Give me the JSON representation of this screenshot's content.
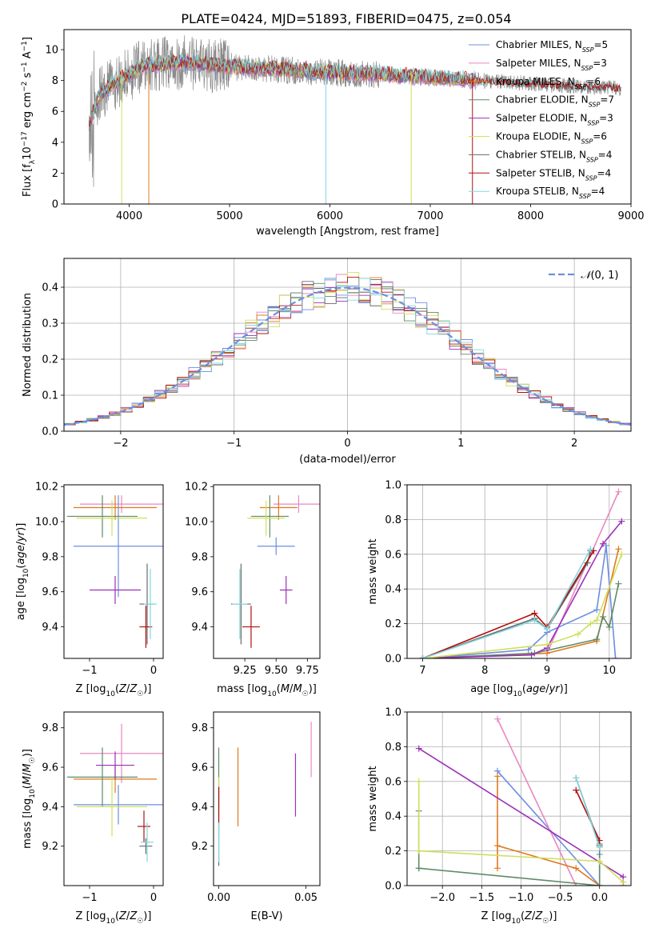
{
  "figure": {
    "title": "PLATE=0424, MJD=51893, FIBERID=0475, z=0.054"
  },
  "series_colors": [
    "#6d8ee0",
    "#e987c0",
    "#df7a1e",
    "#5e8b66",
    "#9b30b8",
    "#cfe05a",
    "#6a6a6a",
    "#b21010",
    "#80d8e0"
  ],
  "chart_data": [
    {
      "id": "spectrum",
      "type": "line",
      "xlabel": "wavelength [Angstrom, rest frame]",
      "ylabel": "Flux [f_λ 10^-17 erg cm^-2 s^-1 A^-1]",
      "xlim": [
        3350,
        9000
      ],
      "ylim": [
        0,
        11.3
      ],
      "xticks": [
        4000,
        5000,
        6000,
        7000,
        8000,
        9000
      ],
      "yticks": [
        0,
        2,
        4,
        6,
        8,
        10
      ],
      "grid": false,
      "legend_position": "top-right",
      "legend": [
        {
          "base": "Chabrier MILES, N",
          "sub": "SSP",
          "tail": "=5",
          "color": "#6d8ee0"
        },
        {
          "base": "Salpeter MILES, N",
          "sub": "SSP",
          "tail": "=3",
          "color": "#e987c0"
        },
        {
          "base": "Kroupa MILES, N",
          "sub": "SSP",
          "tail": "=6",
          "color": "#df7a1e"
        },
        {
          "base": "Chabrier ELODIE, N",
          "sub": "SSP",
          "tail": "=7",
          "color": "#5e8b66"
        },
        {
          "base": "Salpeter ELODIE, N",
          "sub": "SSP",
          "tail": "=3",
          "color": "#9b30b8"
        },
        {
          "base": "Kroupa ELODIE, N",
          "sub": "SSP",
          "tail": "=6",
          "color": "#cfe05a"
        },
        {
          "base": "Chabrier STELIB, N",
          "sub": "SSP",
          "tail": "=4",
          "color": "#6a6a6a"
        },
        {
          "base": "Salpeter STELIB, N",
          "sub": "SSP",
          "tail": "=4",
          "color": "#b21010"
        },
        {
          "base": "Kroupa STELIB, N",
          "sub": "SSP",
          "tail": "=4",
          "color": "#80d8e0"
        }
      ],
      "continuum": [
        [
          3600,
          5.2
        ],
        [
          3700,
          7.0
        ],
        [
          3800,
          7.6
        ],
        [
          3900,
          8.0
        ],
        [
          4000,
          8.4
        ],
        [
          4100,
          8.8
        ],
        [
          4200,
          9.0
        ],
        [
          4400,
          9.1
        ],
        [
          4600,
          9.2
        ],
        [
          4800,
          9.0
        ],
        [
          5000,
          8.9
        ],
        [
          5200,
          8.8
        ],
        [
          5500,
          8.7
        ],
        [
          6000,
          8.5
        ],
        [
          6500,
          8.4
        ],
        [
          7000,
          8.2
        ],
        [
          7500,
          8.0
        ],
        [
          8000,
          7.8
        ],
        [
          8500,
          7.6
        ],
        [
          8900,
          7.5
        ]
      ],
      "spikes": [
        {
          "x": 4195,
          "series": "Kroupa MILES"
        },
        {
          "x": 5960,
          "series": "Kroupa STELIB"
        },
        {
          "x": 6810,
          "series": "Kroupa ELODIE"
        },
        {
          "x": 7420,
          "series": "Salpeter STELIB"
        },
        {
          "x": 3925,
          "series": "Kroupa ELODIE"
        }
      ]
    },
    {
      "id": "residuals",
      "type": "histogram",
      "xlabel": "(data-model)/error",
      "ylabel": "Normed distribution",
      "xlim": [
        -2.5,
        2.5
      ],
      "ylim": [
        0,
        0.48
      ],
      "xticks": [
        -2,
        -1,
        0,
        1,
        2
      ],
      "yticks": [
        0.0,
        0.1,
        0.2,
        0.3,
        0.4
      ],
      "grid": true,
      "legend_position": "top-right",
      "legend": [
        {
          "label": "N(0,1)",
          "color": "#6d8ee0",
          "style": "dashed"
        }
      ],
      "bins": 50
    },
    {
      "id": "age-vs-Z",
      "type": "errorbar",
      "xlabel": "Z [log10(Z/Zsun)]",
      "ylabel": "age [log10(age/yr)]",
      "xlim": [
        -1.4,
        0.15
      ],
      "ylim": [
        9.22,
        10.21
      ],
      "xticks": [
        -1,
        0
      ],
      "yticks": [
        9.4,
        9.6,
        9.8,
        10.0,
        10.2
      ],
      "points": [
        {
          "series": "Chabrier MILES",
          "x": -0.55,
          "xerr": 0.7,
          "y": 9.86,
          "yerr": 0.29
        },
        {
          "series": "Salpeter MILES",
          "x": -0.5,
          "xerr": 0.65,
          "y": 10.1,
          "yerr": 0.05
        },
        {
          "series": "Kroupa MILES",
          "x": -0.6,
          "xerr": 0.65,
          "y": 10.08,
          "yerr": 0.07
        },
        {
          "series": "Chabrier ELODIE",
          "x": -0.8,
          "xerr": 0.55,
          "y": 10.03,
          "yerr": 0.12
        },
        {
          "series": "Salpeter ELODIE",
          "x": -0.6,
          "xerr": 0.4,
          "y": 9.61,
          "yerr": 0.08
        },
        {
          "series": "Kroupa ELODIE",
          "x": -0.65,
          "xerr": 0.55,
          "y": 10.02,
          "yerr": 0.1
        },
        {
          "series": "Chabrier STELIB",
          "x": -0.1,
          "xerr": 0.12,
          "y": 9.53,
          "yerr": 0.23
        },
        {
          "series": "Salpeter STELIB",
          "x": -0.12,
          "xerr": 0.1,
          "y": 9.4,
          "yerr": 0.12
        },
        {
          "series": "Kroupa STELIB",
          "x": -0.05,
          "xerr": 0.1,
          "y": 9.53,
          "yerr": 0.2
        }
      ]
    },
    {
      "id": "age-vs-mass",
      "type": "errorbar",
      "xlabel": "mass [log10(M/Msun)]",
      "ylabel": "",
      "xlim": [
        9.0,
        9.85
      ],
      "ylim": [
        9.22,
        10.21
      ],
      "xticks": [
        9.25,
        9.5,
        9.75
      ],
      "yticks": [
        9.4,
        9.6,
        9.8,
        10.0,
        10.2
      ],
      "points": [
        {
          "series": "Chabrier MILES",
          "x": 9.5,
          "xerr": 0.15,
          "y": 9.86,
          "yerr": 0.05
        },
        {
          "series": "Salpeter MILES",
          "x": 9.68,
          "xerr": 0.2,
          "y": 10.1,
          "yerr": 0.05
        },
        {
          "series": "Kroupa MILES",
          "x": 9.52,
          "xerr": 0.15,
          "y": 10.08,
          "yerr": 0.07
        },
        {
          "series": "Chabrier ELODIE",
          "x": 9.45,
          "xerr": 0.15,
          "y": 10.03,
          "yerr": 0.12
        },
        {
          "series": "Salpeter ELODIE",
          "x": 9.58,
          "xerr": 0.05,
          "y": 9.61,
          "yerr": 0.08
        },
        {
          "series": "Kroupa ELODIE",
          "x": 9.42,
          "xerr": 0.15,
          "y": 10.02,
          "yerr": 0.1
        },
        {
          "series": "Chabrier STELIB",
          "x": 9.22,
          "xerr": 0.08,
          "y": 9.53,
          "yerr": 0.23
        },
        {
          "series": "Salpeter STELIB",
          "x": 9.3,
          "xerr": 0.07,
          "y": 9.4,
          "yerr": 0.12
        },
        {
          "series": "Kroupa STELIB",
          "x": 9.21,
          "xerr": 0.06,
          "y": 9.53,
          "yerr": 0.2
        }
      ]
    },
    {
      "id": "weights-vs-age",
      "type": "line",
      "xlabel": "age [log10(age/yr)]",
      "ylabel": "mass weight",
      "xlim": [
        6.75,
        10.35
      ],
      "ylim": [
        0,
        1.0
      ],
      "xticks": [
        7,
        8,
        9,
        10
      ],
      "yticks": [
        0.0,
        0.2,
        0.4,
        0.6,
        0.8,
        1.0
      ],
      "grid": true,
      "series": [
        {
          "name": "Chabrier MILES",
          "points": [
            [
              7.0,
              0.0
            ],
            [
              8.7,
              0.05
            ],
            [
              9.0,
              0.15
            ],
            [
              9.8,
              0.28
            ],
            [
              9.95,
              0.65
            ],
            [
              10.1,
              0.0
            ]
          ]
        },
        {
          "name": "Salpeter MILES",
          "points": [
            [
              7.0,
              0.0
            ],
            [
              9.0,
              0.03
            ],
            [
              10.15,
              0.96
            ]
          ]
        },
        {
          "name": "Kroupa MILES",
          "points": [
            [
              7.0,
              0.0
            ],
            [
              9.0,
              0.03
            ],
            [
              9.8,
              0.1
            ],
            [
              10.15,
              0.63
            ]
          ]
        },
        {
          "name": "Chabrier ELODIE",
          "points": [
            [
              7.0,
              0.0
            ],
            [
              8.8,
              0.03
            ],
            [
              9.8,
              0.11
            ],
            [
              9.9,
              0.24
            ],
            [
              10.0,
              0.18
            ],
            [
              10.15,
              0.43
            ]
          ]
        },
        {
          "name": "Salpeter ELODIE",
          "points": [
            [
              7.0,
              0.0
            ],
            [
              8.75,
              0.02
            ],
            [
              9.0,
              0.06
            ],
            [
              9.9,
              0.66
            ],
            [
              10.2,
              0.79
            ]
          ]
        },
        {
          "name": "Kroupa ELODIE",
          "points": [
            [
              7.0,
              0.0
            ],
            [
              9.0,
              0.08
            ],
            [
              9.5,
              0.14
            ],
            [
              9.7,
              0.2
            ],
            [
              9.8,
              0.22
            ],
            [
              10.2,
              0.6
            ]
          ]
        },
        {
          "name": "Chabrier STELIB",
          "points": [
            [
              7.0,
              0.0
            ],
            [
              8.8,
              0.23
            ],
            [
              9.0,
              0.17
            ],
            [
              9.65,
              0.55
            ],
            [
              9.7,
              0.62
            ]
          ]
        },
        {
          "name": "Salpeter STELIB",
          "points": [
            [
              7.0,
              0.0
            ],
            [
              8.8,
              0.26
            ],
            [
              9.0,
              0.18
            ],
            [
              9.75,
              0.62
            ]
          ]
        },
        {
          "name": "Kroupa STELIB",
          "points": [
            [
              7.0,
              0.0
            ],
            [
              8.8,
              0.22
            ],
            [
              9.0,
              0.17
            ],
            [
              9.7,
              0.63
            ]
          ]
        }
      ]
    },
    {
      "id": "mass-vs-Z",
      "type": "errorbar",
      "xlabel": "Z [log10(Z/Zsun)]",
      "ylabel": "mass [log10(M/Msun)]",
      "xlim": [
        -1.4,
        0.15
      ],
      "ylim": [
        9.0,
        9.88
      ],
      "xticks": [
        -1,
        0
      ],
      "yticks": [
        9.2,
        9.4,
        9.6,
        9.8
      ],
      "points": [
        {
          "series": "Chabrier MILES",
          "x": -0.55,
          "xerr": 0.7,
          "y": 9.41,
          "yerr": 0.1
        },
        {
          "series": "Salpeter MILES",
          "x": -0.5,
          "xerr": 0.65,
          "y": 9.67,
          "yerr": 0.15
        },
        {
          "series": "Kroupa MILES",
          "x": -0.6,
          "xerr": 0.65,
          "y": 9.54,
          "yerr": 0.07
        },
        {
          "series": "Chabrier ELODIE",
          "x": -0.8,
          "xerr": 0.55,
          "y": 9.55,
          "yerr": 0.15
        },
        {
          "series": "Salpeter ELODIE",
          "x": -0.6,
          "xerr": 0.3,
          "y": 9.61,
          "yerr": 0.07
        },
        {
          "series": "Kroupa ELODIE",
          "x": -0.65,
          "xerr": 0.55,
          "y": 9.4,
          "yerr": 0.15
        },
        {
          "series": "Chabrier STELIB",
          "x": -0.12,
          "xerr": 0.1,
          "y": 9.2,
          "yerr": 0.04
        },
        {
          "series": "Salpeter STELIB",
          "x": -0.15,
          "xerr": 0.1,
          "y": 9.3,
          "yerr": 0.08
        },
        {
          "series": "Kroupa STELIB",
          "x": -0.1,
          "xerr": 0.1,
          "y": 9.22,
          "yerr": 0.1
        }
      ]
    },
    {
      "id": "mass-vs-ebv",
      "type": "errorbar",
      "xlabel": "E(B-V)",
      "ylabel": "",
      "xlim": [
        -0.003,
        0.058
      ],
      "ylim": [
        9.0,
        9.88
      ],
      "xticks": [
        0.0,
        0.05
      ],
      "yticks": [
        9.2,
        9.4,
        9.6,
        9.8
      ],
      "points": [
        {
          "series": "Chabrier MILES",
          "x": 0.0,
          "xerr": 0,
          "y": 9.41,
          "yerr": 0.1
        },
        {
          "series": "Salpeter MILES",
          "x": 0.053,
          "xerr": 0,
          "y": 9.69,
          "yerr": 0.14
        },
        {
          "series": "Kroupa MILES",
          "x": 0.011,
          "xerr": 0,
          "y": 9.5,
          "yerr": 0.2
        },
        {
          "series": "Chabrier ELODIE",
          "x": 0.0,
          "xerr": 0,
          "y": 9.55,
          "yerr": 0.15
        },
        {
          "series": "Salpeter ELODIE",
          "x": 0.044,
          "xerr": 0,
          "y": 9.51,
          "yerr": 0.16
        },
        {
          "series": "Kroupa ELODIE",
          "x": 0.0,
          "xerr": 0,
          "y": 9.4,
          "yerr": 0.15
        },
        {
          "series": "Chabrier STELIB",
          "x": 0.0,
          "xerr": 0,
          "y": 9.2,
          "yerr": 0.1
        },
        {
          "series": "Salpeter STELIB",
          "x": 0.0,
          "xerr": 0,
          "y": 9.4,
          "yerr": 0.1
        },
        {
          "series": "Kroupa STELIB",
          "x": 0.0,
          "xerr": 0,
          "y": 9.22,
          "yerr": 0.1
        }
      ]
    },
    {
      "id": "weights-vs-Z",
      "type": "line",
      "xlabel": "Z [log10(Z/Zsun)]",
      "ylabel": "mass weight",
      "xlim": [
        -2.45,
        0.4
      ],
      "ylim": [
        0,
        1.0
      ],
      "xticks": [
        -2.0,
        -1.5,
        -1.0,
        -0.5,
        0.0
      ],
      "yticks": [
        0.0,
        0.2,
        0.4,
        0.6,
        0.8,
        1.0
      ],
      "grid": true,
      "series": [
        {
          "name": "Chabrier MILES",
          "points": [
            [
              -1.3,
              0.66
            ],
            [
              0.0,
              0.0
            ],
            [
              0.0,
              0.18
            ]
          ]
        },
        {
          "name": "Salpeter MILES",
          "points": [
            [
              -1.3,
              0.96
            ],
            [
              -0.3,
              0.0
            ]
          ]
        },
        {
          "name": "Kroupa MILES",
          "points": [
            [
              -1.3,
              0.1
            ],
            [
              -1.3,
              0.63
            ],
            [
              -1.3,
              0.23
            ],
            [
              -0.3,
              0.1
            ],
            [
              0.0,
              0.0
            ]
          ]
        },
        {
          "name": "Chabrier ELODIE",
          "points": [
            [
              -2.3,
              0.1
            ],
            [
              -2.3,
              0.43
            ],
            [
              -2.3,
              0.1
            ],
            [
              0.0,
              0.0
            ],
            [
              0.0,
              0.24
            ]
          ]
        },
        {
          "name": "Salpeter ELODIE",
          "points": [
            [
              -2.3,
              0.79
            ],
            [
              0.3,
              0.05
            ],
            [
              0.3,
              0.0
            ]
          ]
        },
        {
          "name": "Kroupa ELODIE",
          "points": [
            [
              -2.3,
              0.6
            ],
            [
              -2.3,
              0.2
            ],
            [
              0.0,
              0.14
            ],
            [
              0.3,
              0.02
            ]
          ]
        },
        {
          "name": "Chabrier STELIB",
          "points": [
            [
              -0.3,
              0.62
            ],
            [
              0.0,
              0.23
            ]
          ]
        },
        {
          "name": "Salpeter STELIB",
          "points": [
            [
              -0.3,
              0.55
            ],
            [
              0.0,
              0.26
            ]
          ]
        },
        {
          "name": "Kroupa STELIB",
          "points": [
            [
              -0.3,
              0.62
            ],
            [
              0.0,
              0.22
            ]
          ]
        }
      ]
    }
  ]
}
